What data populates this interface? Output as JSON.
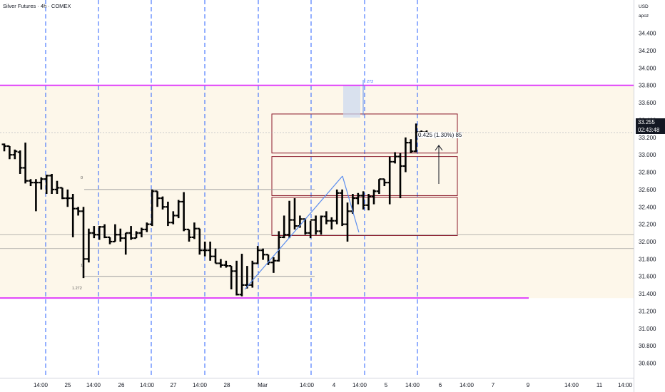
{
  "header": {
    "title": "Silver Futures · 4h · COMEX"
  },
  "price_scale": {
    "currency": "USD",
    "unit": "apoz"
  },
  "last_price": {
    "value": "33.255",
    "countdown": "02:43:48"
  },
  "measure_label": "0.425 (1.30%) 85",
  "fib_labels": {
    "level_0": "0",
    "level_1": "1",
    "level_1272": "1.272",
    "top_ext": "272"
  },
  "colors": {
    "candle": "#000000",
    "magenta": "#e040fb",
    "box_border": "#8b1a2b",
    "zone_fill": "#fdf7ea",
    "vgrid": "#2962ff",
    "trend": "#5b8def"
  },
  "chart_data": {
    "type": "ohlc",
    "y_axis": {
      "ylim": [
        30.35,
        34.75
      ],
      "ticks": [
        "34.400",
        "34.200",
        "34.000",
        "33.800",
        "33.600",
        "33.400",
        "33.200",
        "33.000",
        "32.800",
        "32.600",
        "32.400",
        "32.200",
        "32.000",
        "31.800",
        "31.600",
        "31.400",
        "31.200",
        "31.000",
        "30.800",
        "30.600",
        "30.400"
      ]
    },
    "x_axis": {
      "ticks": [
        "14:00",
        "25",
        "14:00",
        "26",
        "14:00",
        "27",
        "14:00",
        "28",
        "Mar",
        "14:00",
        "4",
        "14:00",
        "5",
        "14:00",
        "6",
        "14:00",
        "7",
        "9",
        "14:00",
        "11",
        "14:00"
      ]
    },
    "levels": {
      "magenta_high": 33.8,
      "magenta_low": 31.35,
      "fib_0": 32.6,
      "fib_1": 31.6,
      "gray_a": 32.08,
      "gray_b": 31.92
    },
    "zones": [
      {
        "top": 33.47,
        "bottom": 33.02
      },
      {
        "top": 32.98,
        "bottom": 32.53
      },
      {
        "top": 32.51,
        "bottom": 32.07
      }
    ],
    "bars": [
      [
        33.12,
        33.13,
        33.04,
        33.1
      ],
      [
        33.1,
        33.1,
        32.95,
        33.0
      ],
      [
        33.0,
        33.06,
        32.95,
        33.04
      ],
      [
        33.03,
        33.05,
        32.78,
        32.85
      ],
      [
        32.85,
        33.14,
        32.67,
        32.7
      ],
      [
        32.7,
        32.72,
        32.64,
        32.68
      ],
      [
        32.68,
        32.72,
        32.35,
        32.68
      ],
      [
        32.68,
        32.74,
        32.6,
        32.72
      ],
      [
        32.72,
        32.77,
        32.55,
        32.76
      ],
      [
        32.76,
        32.78,
        32.55,
        32.6
      ],
      [
        32.6,
        32.7,
        32.55,
        32.62
      ],
      [
        32.62,
        32.62,
        32.49,
        32.5
      ],
      [
        32.5,
        32.6,
        32.4,
        32.5
      ],
      [
        32.5,
        32.55,
        32.05,
        32.38
      ],
      [
        32.38,
        32.4,
        32.3,
        32.35
      ],
      [
        32.35,
        32.4,
        31.58,
        31.8
      ],
      [
        31.8,
        32.15,
        31.76,
        32.1
      ],
      [
        32.1,
        32.18,
        32.04,
        32.08
      ],
      [
        32.08,
        32.18,
        32.02,
        32.17
      ],
      [
        32.17,
        32.2,
        32.04,
        32.05
      ],
      [
        32.05,
        32.05,
        31.97,
        32.0
      ],
      [
        32.0,
        32.2,
        32.0,
        32.08
      ],
      [
        32.08,
        32.15,
        32.0,
        32.04
      ],
      [
        32.04,
        32.1,
        31.85,
        32.1
      ],
      [
        32.1,
        32.18,
        32.02,
        32.04
      ],
      [
        32.04,
        32.12,
        32.04,
        32.1
      ],
      [
        32.1,
        32.16,
        32.05,
        32.14
      ],
      [
        32.14,
        32.22,
        32.11,
        32.2
      ],
      [
        32.2,
        32.6,
        32.18,
        32.58
      ],
      [
        32.58,
        32.58,
        32.4,
        32.5
      ],
      [
        32.5,
        32.52,
        32.37,
        32.4
      ],
      [
        32.4,
        32.46,
        32.18,
        32.22
      ],
      [
        32.22,
        32.35,
        32.2,
        32.3
      ],
      [
        32.3,
        32.48,
        32.27,
        32.46
      ],
      [
        32.46,
        32.57,
        32.12,
        32.14
      ],
      [
        32.14,
        32.14,
        32.0,
        32.05
      ],
      [
        32.05,
        32.22,
        32.03,
        32.15
      ],
      [
        32.15,
        32.15,
        31.85,
        31.9
      ],
      [
        31.9,
        32.0,
        31.83,
        31.9
      ],
      [
        31.9,
        32.0,
        31.78,
        31.83
      ],
      [
        31.83,
        31.92,
        31.75,
        31.75
      ],
      [
        31.75,
        31.8,
        31.7,
        31.73
      ],
      [
        31.73,
        31.78,
        31.7,
        31.72
      ],
      [
        31.72,
        31.72,
        31.45,
        31.66
      ],
      [
        31.66,
        31.78,
        31.38,
        31.39
      ],
      [
        31.39,
        31.86,
        31.37,
        31.5
      ],
      [
        31.5,
        31.72,
        31.46,
        31.5
      ],
      [
        31.5,
        31.78,
        31.47,
        31.75
      ],
      [
        31.75,
        31.95,
        31.74,
        31.9
      ],
      [
        31.9,
        31.92,
        31.79,
        31.85
      ],
      [
        31.85,
        31.85,
        31.73,
        31.76
      ],
      [
        31.76,
        31.82,
        31.64,
        31.78
      ],
      [
        31.78,
        32.12,
        31.77,
        32.05
      ],
      [
        32.05,
        32.3,
        32.04,
        32.08
      ],
      [
        32.08,
        32.47,
        32.04,
        32.25
      ],
      [
        32.25,
        32.5,
        32.14,
        32.18
      ],
      [
        32.18,
        32.3,
        32.16,
        32.26
      ],
      [
        32.26,
        32.26,
        32.08,
        32.1
      ],
      [
        32.1,
        32.24,
        32.04,
        32.25
      ],
      [
        32.25,
        32.3,
        32.08,
        32.12
      ],
      [
        32.12,
        32.3,
        32.08,
        32.29
      ],
      [
        32.29,
        32.35,
        32.2,
        32.24
      ],
      [
        32.24,
        32.28,
        32.14,
        32.24
      ],
      [
        32.24,
        32.6,
        32.2,
        32.56
      ],
      [
        32.56,
        32.6,
        32.18,
        32.2
      ],
      [
        32.2,
        32.45,
        32.0,
        32.35
      ],
      [
        32.35,
        32.55,
        32.32,
        32.5
      ],
      [
        32.5,
        32.56,
        32.43,
        32.53
      ],
      [
        32.53,
        32.58,
        32.37,
        32.42
      ],
      [
        32.42,
        32.55,
        32.36,
        32.52
      ],
      [
        32.52,
        32.6,
        32.43,
        32.58
      ],
      [
        32.58,
        32.72,
        32.55,
        32.72
      ],
      [
        32.72,
        32.72,
        32.64,
        32.68
      ],
      [
        32.68,
        32.98,
        32.43,
        32.92
      ],
      [
        32.92,
        33.03,
        32.9,
        32.98
      ],
      [
        32.98,
        33.02,
        32.5,
        32.87
      ],
      [
        32.87,
        33.2,
        32.8,
        33.14
      ],
      [
        33.14,
        33.18,
        33.02,
        33.04
      ],
      [
        33.04,
        33.36,
        33.03,
        33.26
      ],
      [
        33.26,
        33.28,
        33.19,
        33.26
      ],
      [
        33.26,
        33.28,
        33.22,
        33.25
      ]
    ]
  }
}
